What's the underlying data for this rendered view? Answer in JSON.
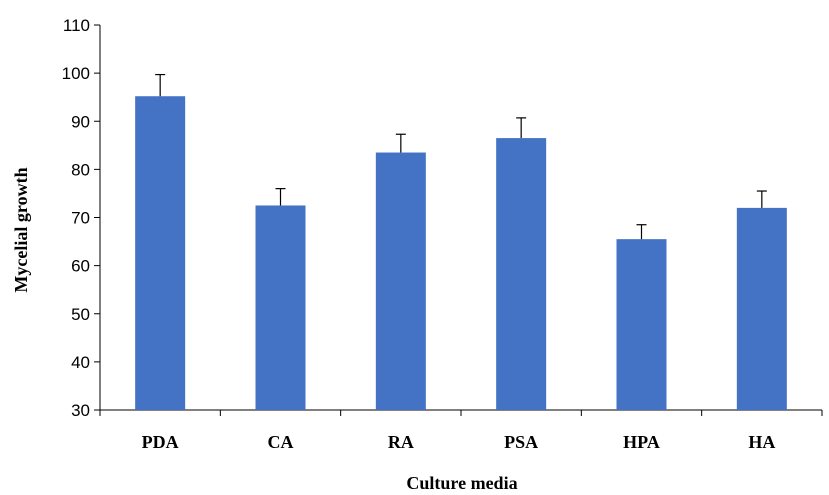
{
  "chart_data": {
    "type": "bar",
    "title": "",
    "xlabel": "Culture media",
    "ylabel": "Mycelial growth",
    "categories": [
      "PDA",
      "CA",
      "RA",
      "PSA",
      "HPA",
      "HA"
    ],
    "series": [
      {
        "values": [
          95.2,
          72.5,
          83.5,
          86.5,
          65.5,
          72.0
        ],
        "error": [
          4.5,
          3.5,
          3.8,
          4.2,
          3.0,
          3.5
        ]
      }
    ],
    "ylim": [
      30,
      110
    ],
    "yticks": [
      30,
      40,
      50,
      60,
      70,
      80,
      90,
      100,
      110
    ],
    "grid": false,
    "legend": "none",
    "colors": {
      "bar": "#4472C4",
      "axis": "#000000"
    }
  }
}
